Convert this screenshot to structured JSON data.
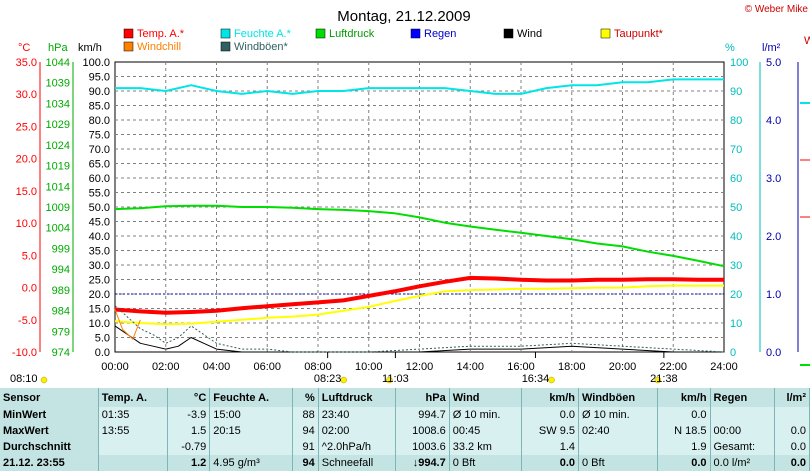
{
  "header": {
    "title": "Montag, 21.12.2009",
    "copyright": "© Weber Mike",
    "edge_letter": "W"
  },
  "legend": [
    {
      "label": "Temp. A.*",
      "color": "#ff0000"
    },
    {
      "label": "Feuchte A.*",
      "color": "#00e5e5"
    },
    {
      "label": "Luftdruck",
      "color": "#00dd00"
    },
    {
      "label": "Regen",
      "color": "#0000ff"
    },
    {
      "label": "Wind",
      "color": "#000000"
    },
    {
      "label": "Taupunkt*",
      "color": "#ffff00"
    },
    {
      "label": "Windchill",
      "color": "#ff7f00"
    },
    {
      "label": "Windböen*",
      "color": "#306060"
    }
  ],
  "axes": {
    "temp": {
      "unit": "°C",
      "ticks": [
        "35.0",
        "30.0",
        "25.0",
        "20.0",
        "15.0",
        "10.0",
        "5.0",
        "0.0",
        "-5.0",
        "-10.0"
      ],
      "color": "#ff0000"
    },
    "pressure": {
      "unit": "hPa",
      "ticks": [
        "1044",
        "1039",
        "1034",
        "1029",
        "1024",
        "1019",
        "1014",
        "1009",
        "1004",
        "999",
        "994",
        "989",
        "984",
        "979",
        "974"
      ],
      "color": "#00aa00"
    },
    "wind": {
      "unit": "km/h",
      "ticks": [
        "100.0",
        "95.0",
        "90.0",
        "85.0",
        "80.0",
        "75.0",
        "70.0",
        "65.0",
        "60.0",
        "55.0",
        "50.0",
        "45.0",
        "40.0",
        "35.0",
        "30.0",
        "25.0",
        "20.0",
        "15.0",
        "10.0",
        "5.0",
        "0.0"
      ],
      "color": "#000000"
    },
    "humidity": {
      "unit": "%",
      "ticks": [
        "100",
        "90",
        "80",
        "70",
        "60",
        "50",
        "40",
        "30",
        "20",
        "10",
        "0"
      ],
      "color": "#00bbbb"
    },
    "rain": {
      "unit": "l/m²",
      "ticks": [
        "5.0",
        "4.0",
        "3.0",
        "2.0",
        "1.0",
        "0.0"
      ],
      "color": "#0000aa"
    },
    "time_ticks": [
      "00:00",
      "02:00",
      "04:00",
      "06:00",
      "08:00",
      "10:00",
      "12:00",
      "14:00",
      "16:00",
      "18:00",
      "20:00",
      "22:00",
      "24:00"
    ]
  },
  "sun_events": [
    {
      "label": "08:10",
      "x_hours": 0.0
    },
    {
      "label": "08:23",
      "x_hours": 8.38
    },
    {
      "label": "11:03",
      "x_hours": 11.05
    },
    {
      "label": "16:34",
      "x_hours": 16.57
    },
    {
      "label": "21:38",
      "x_hours": 21.63
    }
  ],
  "chart_data": {
    "type": "line",
    "x_unit": "hours",
    "xlim": [
      0,
      24
    ],
    "series": [
      {
        "name": "Feuchte A.*",
        "axis": "humidity",
        "color": "#00e5e5",
        "x": [
          0,
          1,
          2,
          3,
          4,
          5,
          6,
          7,
          8,
          9,
          10,
          11,
          12,
          13,
          14,
          15,
          16,
          17,
          18,
          19,
          20,
          21,
          22,
          23,
          24
        ],
        "y": [
          91,
          91,
          90,
          92,
          90,
          89,
          90,
          89,
          90,
          90,
          91,
          91,
          91,
          91,
          90,
          89,
          89,
          91,
          92,
          92,
          93,
          93,
          94,
          94,
          94
        ]
      },
      {
        "name": "Luftdruck",
        "axis": "pressure",
        "color": "#00dd00",
        "x": [
          0,
          1,
          2,
          3,
          4,
          5,
          6,
          7,
          8,
          9,
          10,
          11,
          12,
          13,
          14,
          15,
          16,
          17,
          18,
          19,
          20,
          21,
          22,
          23,
          24
        ],
        "y": [
          1008.5,
          1008.7,
          1009.2,
          1009.3,
          1009.3,
          1009.0,
          1009.0,
          1008.8,
          1008.5,
          1008.3,
          1008.0,
          1007.5,
          1006.5,
          1005.2,
          1004.3,
          1003.5,
          1002.8,
          1002.0,
          1001.2,
          1000.2,
          999.5,
          998.2,
          997.2,
          996.0,
          994.7
        ]
      },
      {
        "name": "Temp. A.*",
        "axis": "temp",
        "color": "#ff0000",
        "x": [
          0,
          1,
          2,
          3,
          4,
          5,
          6,
          7,
          8,
          9,
          10,
          11,
          12,
          13,
          14,
          15,
          16,
          17,
          18,
          19,
          20,
          21,
          22,
          23,
          24
        ],
        "y": [
          -3.4,
          -3.7,
          -3.9,
          -3.8,
          -3.6,
          -3.2,
          -2.9,
          -2.6,
          -2.3,
          -2.0,
          -1.3,
          -0.6,
          0.2,
          0.9,
          1.5,
          1.4,
          1.2,
          1.1,
          1.1,
          1.2,
          1.2,
          1.3,
          1.3,
          1.2,
          1.2
        ]
      },
      {
        "name": "Taupunkt*",
        "axis": "temp",
        "color": "#ffff00",
        "x": [
          0,
          1,
          2,
          3,
          4,
          5,
          6,
          7,
          8,
          9,
          10,
          11,
          12,
          13,
          14,
          15,
          16,
          17,
          18,
          19,
          20,
          21,
          22,
          23,
          24
        ],
        "y": [
          -5.2,
          -5.5,
          -5.7,
          -5.6,
          -5.3,
          -5.0,
          -4.7,
          -4.5,
          -4.2,
          -3.6,
          -3.0,
          -2.1,
          -1.3,
          -0.6,
          -0.4,
          -0.3,
          -0.2,
          -0.2,
          -0.1,
          0.0,
          0.0,
          0.2,
          0.3,
          0.3,
          0.3
        ]
      },
      {
        "name": "Wind",
        "axis": "wind",
        "color": "#000000",
        "x": [
          0,
          0.5,
          1,
          1.5,
          2,
          2.5,
          3,
          3.5,
          4,
          5,
          6,
          7,
          8,
          10,
          12,
          14,
          16,
          18,
          20,
          22,
          24
        ],
        "y": [
          9,
          6,
          3,
          2,
          1,
          2,
          5,
          3,
          1,
          0,
          0,
          0,
          0,
          0,
          0,
          1,
          1,
          2,
          1,
          0,
          0
        ]
      },
      {
        "name": "Windböen*",
        "axis": "wind",
        "color": "#306060",
        "x": [
          0,
          0.5,
          1,
          1.5,
          2,
          2.5,
          3,
          3.5,
          4,
          5,
          6,
          7,
          8,
          10,
          12,
          14,
          16,
          18,
          20,
          22,
          24
        ],
        "y": [
          16,
          12,
          8,
          6,
          3,
          5,
          9,
          6,
          3,
          1,
          1,
          0,
          0,
          0,
          1,
          2,
          2,
          3,
          2,
          1,
          0
        ]
      },
      {
        "name": "Windchill",
        "axis": "temp",
        "color": "#ff7f00",
        "x": [
          0,
          0.3,
          0.7,
          1.0
        ],
        "y": [
          -3.4,
          -6.5,
          -8.0,
          -5.0
        ]
      }
    ],
    "dashed_reference": {
      "axis": "rain",
      "value": 1.0,
      "color": "#0000aa"
    }
  },
  "stats": {
    "header": [
      "Sensor",
      "Temp. A.",
      "°C",
      "Feuchte A.",
      "%",
      "Luftdruck",
      "hPa",
      "Wind",
      "km/h",
      "Windböen",
      "km/h",
      "Regen",
      "l/m²"
    ],
    "rows": [
      [
        "MinWert",
        "01:35",
        "-3.9",
        "15:00",
        "88",
        "23:40",
        "994.7",
        "Ø 10 min.",
        "0.0",
        "Ø 10 min.",
        "0.0",
        "",
        ""
      ],
      [
        "MaxWert",
        "13:55",
        "1.5",
        "20:15",
        "94",
        "02:00",
        "1008.6",
        "00:45",
        "SW 9.5",
        "02:40",
        "N 18.5",
        "00:00",
        "0.0"
      ],
      [
        "Durchschnitt",
        "",
        "-0.79",
        "",
        "91",
        "^2.0hPa/h",
        "1003.6",
        "33.2 km",
        "1.4",
        "",
        "1.9",
        "Gesamt:",
        "0.0"
      ],
      [
        "21.12. 23:55",
        "",
        "1.2",
        "4.95 g/m³",
        "94",
        "Schneefall",
        "↓994.7",
        "0 Bft",
        "0.0",
        "0 Bft",
        "0.0",
        "0.0 l/m²",
        "0.0"
      ]
    ]
  }
}
